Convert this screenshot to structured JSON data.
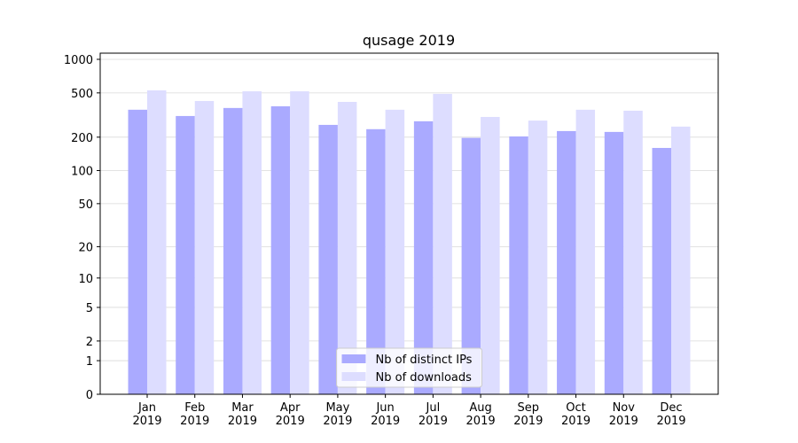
{
  "chart_data": {
    "type": "bar",
    "title": "qusage 2019",
    "yscale": "log1p",
    "categories": [
      "Jan\n2019",
      "Feb\n2019",
      "Mar\n2019",
      "Apr\n2019",
      "May\n2019",
      "Jun\n2019",
      "Jul\n2019",
      "Aug\n2019",
      "Sep\n2019",
      "Oct\n2019",
      "Nov\n2019",
      "Dec\n2019"
    ],
    "series": [
      {
        "name": "Nb of distinct IPs",
        "color": "#aaaaff",
        "values": [
          353,
          310,
          366,
          379,
          258,
          236,
          278,
          197,
          203,
          227,
          223,
          160
        ]
      },
      {
        "name": "Nb of downloads",
        "color": "#ddddff",
        "values": [
          527,
          423,
          517,
          517,
          415,
          353,
          490,
          304,
          282,
          353,
          346,
          249
        ]
      }
    ],
    "ylim": [
      0,
      1136
    ],
    "yticks": [
      0,
      1,
      2,
      5,
      10,
      20,
      50,
      100,
      200,
      500,
      1000
    ],
    "grid": true,
    "legend": "lower center"
  }
}
